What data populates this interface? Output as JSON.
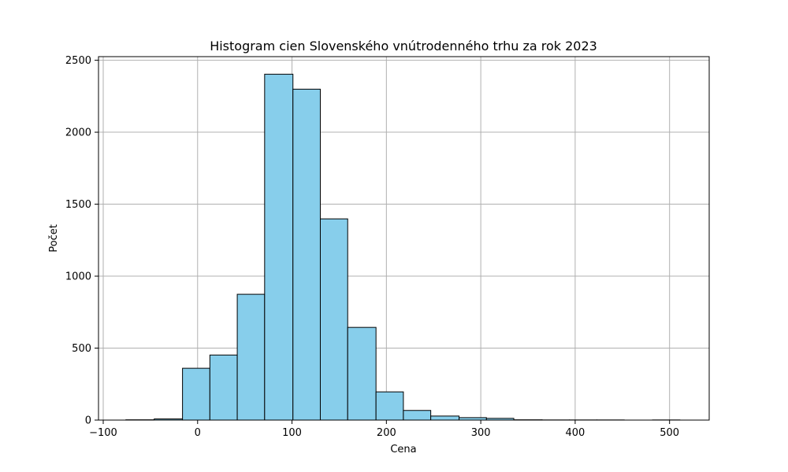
{
  "chart_data": {
    "type": "bar",
    "title": "Histogram cien Slovenského vnútrodenného trhu za rok 2023",
    "xlabel": "Cena",
    "ylabel": "Počet",
    "xlim": [
      -105,
      542
    ],
    "ylim": [
      0,
      2525
    ],
    "grid": true,
    "bar_color": "#87ceeb",
    "edge_color": "#000000",
    "grid_color": "#b0b0b0",
    "x_ticks": [
      -100,
      0,
      100,
      200,
      300,
      400,
      500
    ],
    "x_tick_labels": [
      "−100",
      "0",
      "100",
      "200",
      "300",
      "400",
      "500"
    ],
    "y_ticks": [
      0,
      500,
      1000,
      1500,
      2000,
      2500
    ],
    "y_tick_labels": [
      "0",
      "500",
      "1000",
      "1500",
      "2000",
      "2500"
    ],
    "bins": [
      {
        "start": -76,
        "end": -46,
        "count": 2
      },
      {
        "start": -46,
        "end": -16,
        "count": 8
      },
      {
        "start": -16,
        "end": 13,
        "count": 360
      },
      {
        "start": 13,
        "end": 42,
        "count": 452
      },
      {
        "start": 42,
        "end": 71,
        "count": 874
      },
      {
        "start": 71,
        "end": 101,
        "count": 2403
      },
      {
        "start": 101,
        "end": 130,
        "count": 2299
      },
      {
        "start": 130,
        "end": 159,
        "count": 1398
      },
      {
        "start": 159,
        "end": 189,
        "count": 644
      },
      {
        "start": 189,
        "end": 218,
        "count": 196
      },
      {
        "start": 218,
        "end": 247,
        "count": 67
      },
      {
        "start": 247,
        "end": 277,
        "count": 28
      },
      {
        "start": 277,
        "end": 306,
        "count": 17
      },
      {
        "start": 306,
        "end": 335,
        "count": 12
      },
      {
        "start": 335,
        "end": 365,
        "count": 2
      },
      {
        "start": 365,
        "end": 394,
        "count": 1
      },
      {
        "start": 394,
        "end": 423,
        "count": 1
      },
      {
        "start": 423,
        "end": 452,
        "count": 1
      },
      {
        "start": 452,
        "end": 482,
        "count": 0
      },
      {
        "start": 482,
        "end": 511,
        "count": 1
      }
    ]
  }
}
